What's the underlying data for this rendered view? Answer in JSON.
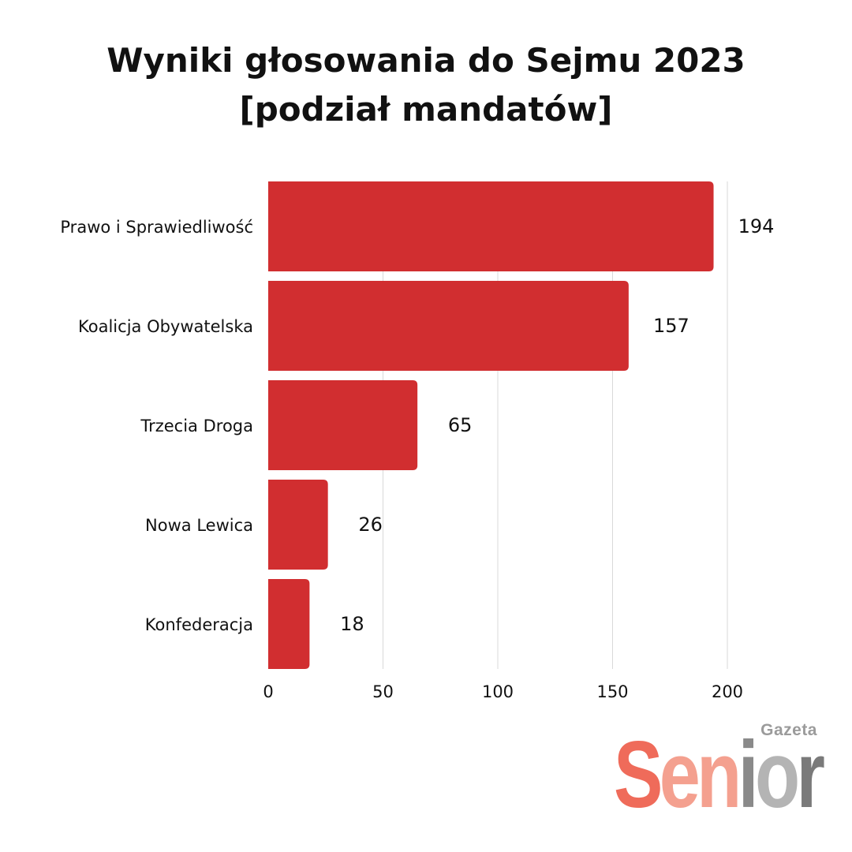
{
  "title": {
    "line1": "Wyniki głosowania do Sejmu 2023",
    "line2": "[podział mandatów]"
  },
  "chart_data": {
    "type": "bar",
    "orientation": "horizontal",
    "categories": [
      "Prawo i Sprawiedliwość",
      "Koalicja Obywatelska",
      "Trzecia Droga",
      "Nowa Lewica",
      "Konfederacja"
    ],
    "values": [
      194,
      157,
      65,
      26,
      18
    ],
    "xlim": [
      0,
      200
    ],
    "xticks": [
      0,
      50,
      100,
      150,
      200
    ],
    "grid": true,
    "bar_color": "#d12e30",
    "grid_color": "#d9d9d9",
    "label_color": "#111111"
  },
  "logo": {
    "small": "Gazeta",
    "letters": [
      "S",
      "e",
      "n",
      "i",
      "o",
      "r"
    ]
  }
}
